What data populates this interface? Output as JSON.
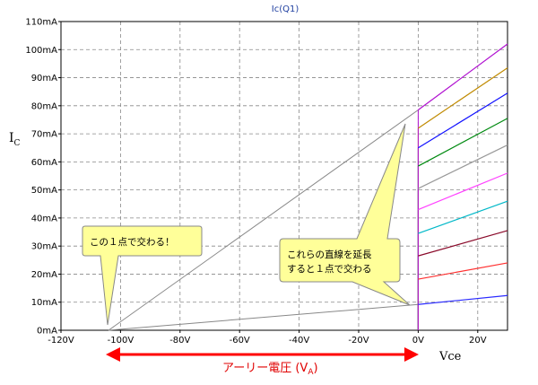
{
  "chart_data": {
    "type": "line",
    "title": "Ic(Q1)",
    "ylabel_main": "I",
    "ylabel_sub": "C",
    "xlabel": "Vce",
    "xlim": [
      -120,
      30
    ],
    "ylim": [
      0,
      110
    ],
    "x_ticks": [
      -120,
      -100,
      -80,
      -60,
      -40,
      -20,
      0,
      20
    ],
    "x_tick_labels": [
      "-120V",
      "-100V",
      "-80V",
      "-60V",
      "-40V",
      "-20V",
      "0V",
      "20V"
    ],
    "y_ticks": [
      0,
      10,
      20,
      30,
      40,
      50,
      60,
      70,
      80,
      90,
      100,
      110
    ],
    "y_tick_labels": [
      "0mA",
      "10mA",
      "20mA",
      "30mA",
      "40mA",
      "50mA",
      "60mA",
      "70mA",
      "80mA",
      "90mA",
      "100mA",
      "110mA"
    ],
    "grid": true,
    "early_voltage_x": -104,
    "extrapolation_lines": [
      {
        "x": [
          -104,
          0
        ],
        "y": [
          0,
          78.5
        ],
        "color": "#888888"
      },
      {
        "x": [
          -104,
          0
        ],
        "y": [
          0,
          9.2
        ],
        "color": "#888888"
      }
    ],
    "series": [
      {
        "x": [
          0,
          30
        ],
        "y": [
          9.2,
          12.4
        ],
        "color": "#2a2aff"
      },
      {
        "x": [
          0,
          30
        ],
        "y": [
          18.2,
          24.0
        ],
        "color": "#ff3030"
      },
      {
        "x": [
          0,
          30
        ],
        "y": [
          26.5,
          35.5
        ],
        "color": "#8a0a2a"
      },
      {
        "x": [
          0,
          30
        ],
        "y": [
          34.5,
          46.0
        ],
        "color": "#00b8c8"
      },
      {
        "x": [
          0,
          30
        ],
        "y": [
          43.0,
          56.0
        ],
        "color": "#ff40ff"
      },
      {
        "x": [
          0,
          30
        ],
        "y": [
          50.5,
          66.0
        ],
        "color": "#999999"
      },
      {
        "x": [
          0,
          30
        ],
        "y": [
          58.5,
          75.5
        ],
        "color": "#008a10"
      },
      {
        "x": [
          0,
          30
        ],
        "y": [
          65.0,
          84.5
        ],
        "color": "#1010ff"
      },
      {
        "x": [
          0,
          30
        ],
        "y": [
          72.0,
          93.5
        ],
        "color": "#c08a00"
      },
      {
        "x": [
          0,
          30
        ],
        "y": [
          78.5,
          102.0
        ],
        "color": "#b010d0"
      }
    ]
  },
  "annotations": {
    "callout_left": "この１点で交わる！",
    "callout_right_line1": "これらの直線を延長",
    "callout_right_line2": "すると１点で交わる",
    "va_label_main": "アーリー電圧 (V",
    "va_label_sub": "A",
    "va_label_close": ")",
    "arrow_color": "#ff0000",
    "callout_fill": "#ffff99"
  }
}
